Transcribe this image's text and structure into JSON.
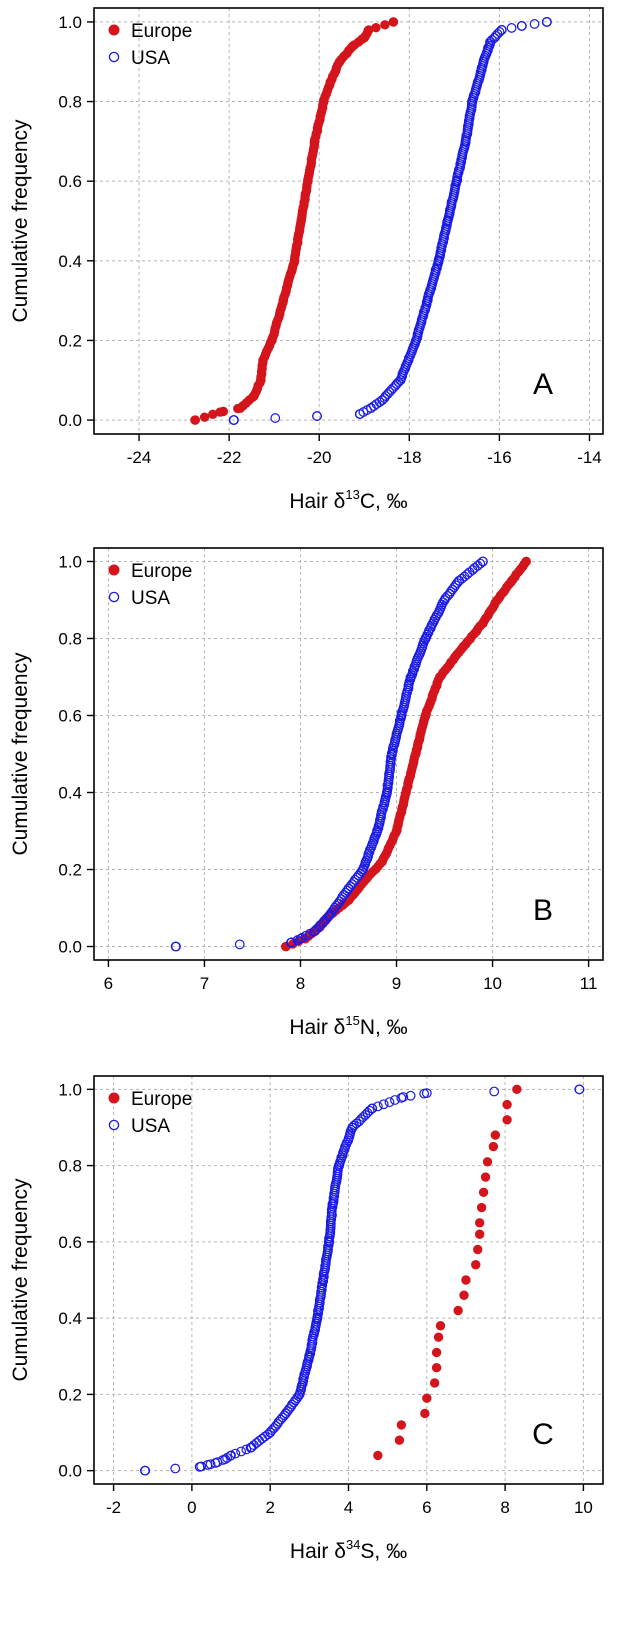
{
  "colors": {
    "europe": "#d4151c",
    "usa": "#1a1ae6"
  },
  "y_ticks": [
    "0.0",
    "0.2",
    "0.4",
    "0.6",
    "0.8",
    "1.0"
  ],
  "legend": {
    "europe": "Europe",
    "usa": "USA"
  },
  "chart_data": [
    {
      "type": "scatter",
      "panel": "A",
      "ylabel": "Cumulative frequency",
      "xlabel_prefix": "Hair  δ",
      "xlabel_sup": "13",
      "xlabel_suffix": "C, ‰",
      "xlim": [
        -25,
        -13.7
      ],
      "ylim": [
        -0.035,
        1.035
      ],
      "x_ticks": [
        "-24",
        "-22",
        "-20",
        "-18",
        "-16",
        "-14"
      ],
      "x_tick_values": [
        -24,
        -22,
        -20,
        -18,
        -16,
        -14
      ],
      "grid": true,
      "legend_position": "top-left",
      "series": [
        {
          "name": "Europe",
          "marker": "filled-circle",
          "quantiles": [
            [
              0,
              -22.75
            ],
            [
              0.02,
              -22.2
            ],
            [
              0.03,
              -21.75
            ],
            [
              0.06,
              -21.45
            ],
            [
              0.1,
              -21.3
            ],
            [
              0.15,
              -21.25
            ],
            [
              0.2,
              -21.05
            ],
            [
              0.3,
              -20.8
            ],
            [
              0.4,
              -20.55
            ],
            [
              0.5,
              -20.4
            ],
            [
              0.6,
              -20.25
            ],
            [
              0.7,
              -20.1
            ],
            [
              0.8,
              -19.9
            ],
            [
              0.85,
              -19.75
            ],
            [
              0.9,
              -19.55
            ],
            [
              0.94,
              -19.25
            ],
            [
              0.96,
              -19.0
            ],
            [
              0.98,
              -18.9
            ],
            [
              1,
              -18.35
            ]
          ]
        },
        {
          "name": "USA",
          "marker": "open-circle",
          "quantiles": [
            [
              0,
              -21.9
            ],
            [
              0.01,
              -20.05
            ],
            [
              0.015,
              -19.1
            ],
            [
              0.03,
              -18.85
            ],
            [
              0.05,
              -18.6
            ],
            [
              0.1,
              -18.2
            ],
            [
              0.2,
              -17.85
            ],
            [
              0.3,
              -17.6
            ],
            [
              0.4,
              -17.35
            ],
            [
              0.5,
              -17.15
            ],
            [
              0.6,
              -16.95
            ],
            [
              0.7,
              -16.75
            ],
            [
              0.8,
              -16.6
            ],
            [
              0.9,
              -16.35
            ],
            [
              0.95,
              -16.2
            ],
            [
              0.98,
              -15.95
            ],
            [
              0.99,
              -15.5
            ],
            [
              1,
              -14.95
            ]
          ]
        }
      ]
    },
    {
      "type": "scatter",
      "panel": "B",
      "ylabel": "Cumulative frequency",
      "xlabel_prefix": "Hair  δ",
      "xlabel_sup": "15",
      "xlabel_suffix": "N, ‰",
      "xlim": [
        5.85,
        11.15
      ],
      "ylim": [
        -0.035,
        1.035
      ],
      "x_ticks": [
        "6",
        "7",
        "8",
        "9",
        "10",
        "11"
      ],
      "x_tick_values": [
        6,
        7,
        8,
        9,
        10,
        11
      ],
      "grid": true,
      "legend_position": "top-left",
      "series": [
        {
          "name": "Europe",
          "marker": "filled-circle",
          "quantiles": [
            [
              0,
              7.85
            ],
            [
              0.02,
              8.05
            ],
            [
              0.05,
              8.2
            ],
            [
              0.08,
              8.3
            ],
            [
              0.12,
              8.5
            ],
            [
              0.18,
              8.7
            ],
            [
              0.22,
              8.85
            ],
            [
              0.3,
              9.0
            ],
            [
              0.4,
              9.1
            ],
            [
              0.5,
              9.2
            ],
            [
              0.6,
              9.3
            ],
            [
              0.7,
              9.45
            ],
            [
              0.78,
              9.7
            ],
            [
              0.84,
              9.9
            ],
            [
              0.9,
              10.05
            ],
            [
              0.95,
              10.2
            ],
            [
              1,
              10.35
            ]
          ]
        },
        {
          "name": "USA",
          "marker": "open-circle",
          "quantiles": [
            [
              0,
              6.7
            ],
            [
              0.01,
              7.9
            ],
            [
              0.02,
              8.0
            ],
            [
              0.04,
              8.15
            ],
            [
              0.08,
              8.3
            ],
            [
              0.15,
              8.5
            ],
            [
              0.2,
              8.65
            ],
            [
              0.3,
              8.8
            ],
            [
              0.4,
              8.9
            ],
            [
              0.5,
              8.95
            ],
            [
              0.6,
              9.05
            ],
            [
              0.7,
              9.15
            ],
            [
              0.8,
              9.3
            ],
            [
              0.9,
              9.5
            ],
            [
              0.95,
              9.65
            ],
            [
              1,
              9.9
            ]
          ]
        }
      ]
    },
    {
      "type": "scatter",
      "panel": "C",
      "ylabel": "Cumulative frequency",
      "xlabel_prefix": "Hair  δ",
      "xlabel_sup": "34",
      "xlabel_suffix": "S, ‰",
      "xlim": [
        -2.5,
        10.5
      ],
      "ylim": [
        -0.035,
        1.035
      ],
      "x_ticks": [
        "-2",
        "0",
        "2",
        "4",
        "6",
        "8",
        "10"
      ],
      "x_tick_values": [
        -2,
        0,
        2,
        4,
        6,
        8,
        10
      ],
      "grid": true,
      "legend_position": "top-left",
      "series": [
        {
          "name": "Europe",
          "marker": "filled-circle",
          "points": [
            [
              4.75,
              0.04
            ],
            [
              5.3,
              0.08
            ],
            [
              5.35,
              0.12
            ],
            [
              5.95,
              0.15
            ],
            [
              6.0,
              0.19
            ],
            [
              6.2,
              0.23
            ],
            [
              6.25,
              0.27
            ],
            [
              6.25,
              0.31
            ],
            [
              6.3,
              0.35
            ],
            [
              6.35,
              0.38
            ],
            [
              6.8,
              0.42
            ],
            [
              6.95,
              0.46
            ],
            [
              7.0,
              0.5
            ],
            [
              7.25,
              0.54
            ],
            [
              7.3,
              0.58
            ],
            [
              7.35,
              0.62
            ],
            [
              7.35,
              0.65
            ],
            [
              7.4,
              0.69
            ],
            [
              7.45,
              0.73
            ],
            [
              7.5,
              0.77
            ],
            [
              7.55,
              0.81
            ],
            [
              7.7,
              0.85
            ],
            [
              7.75,
              0.88
            ],
            [
              8.05,
              0.92
            ],
            [
              8.05,
              0.96
            ],
            [
              8.3,
              1.0
            ]
          ]
        },
        {
          "name": "USA",
          "marker": "open-circle",
          "quantiles": [
            [
              0,
              -1.2
            ],
            [
              0.01,
              0.2
            ],
            [
              0.015,
              0.4
            ],
            [
              0.02,
              0.6
            ],
            [
              0.03,
              0.85
            ],
            [
              0.04,
              1.0
            ],
            [
              0.06,
              1.5
            ],
            [
              0.1,
              2.0
            ],
            [
              0.15,
              2.4
            ],
            [
              0.2,
              2.75
            ],
            [
              0.3,
              3.0
            ],
            [
              0.4,
              3.2
            ],
            [
              0.5,
              3.35
            ],
            [
              0.6,
              3.5
            ],
            [
              0.7,
              3.6
            ],
            [
              0.8,
              3.75
            ],
            [
              0.9,
              4.1
            ],
            [
              0.95,
              4.6
            ],
            [
              0.98,
              5.4
            ],
            [
              0.99,
              6.0
            ],
            [
              1,
              9.9
            ]
          ]
        }
      ]
    }
  ]
}
